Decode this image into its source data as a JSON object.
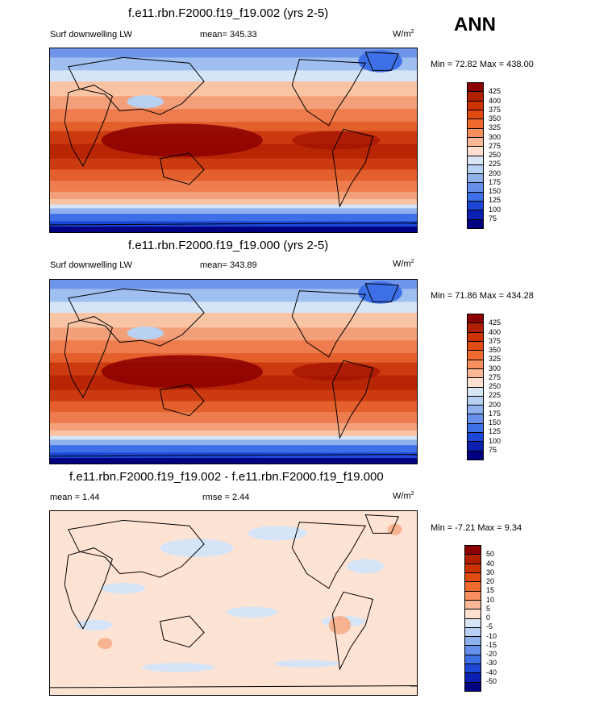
{
  "season": "ANN",
  "panels": [
    {
      "title": "f.e11.rbn.F2000.f19_f19.002 (yrs 2-5)",
      "left_label": "Surf downwelling LW",
      "center_label": "mean= 345.33",
      "units": "W/m",
      "units_exp": "2",
      "minmax": "Min =  72.82 Max = 438.00",
      "colorbar": {
        "labels": [
          "425",
          "400",
          "375",
          "350",
          "325",
          "300",
          "275",
          "250",
          "225",
          "200",
          "175",
          "150",
          "125",
          "100",
          "75"
        ],
        "colors": [
          "#8b0000",
          "#b01f00",
          "#cc3300",
          "#e04b10",
          "#ee6a2e",
          "#f78f5e",
          "#fbb896",
          "#fde0cf",
          "#d9e6f7",
          "#b8d0f2",
          "#8fb1ee",
          "#6690eb",
          "#3d6fe6",
          "#1c47d6",
          "#0b1fb0",
          "#000080"
        ]
      },
      "field": "lw"
    },
    {
      "title": "f.e11.rbn.F2000.f19_f19.000 (yrs 2-5)",
      "left_label": "Surf downwelling LW",
      "center_label": "mean= 343.89",
      "units": "W/m",
      "units_exp": "2",
      "minmax": "Min =  71.86 Max = 434.28",
      "colorbar": {
        "labels": [
          "425",
          "400",
          "375",
          "350",
          "325",
          "300",
          "275",
          "250",
          "225",
          "200",
          "175",
          "150",
          "125",
          "100",
          "75"
        ],
        "colors": [
          "#8b0000",
          "#b01f00",
          "#cc3300",
          "#e04b10",
          "#ee6a2e",
          "#f78f5e",
          "#fbb896",
          "#fde0cf",
          "#d9e6f7",
          "#b8d0f2",
          "#8fb1ee",
          "#6690eb",
          "#3d6fe6",
          "#1c47d6",
          "#0b1fb0",
          "#000080"
        ]
      },
      "field": "lw"
    },
    {
      "title": "f.e11.rbn.F2000.f19_f19.002 - f.e11.rbn.F2000.f19_f19.000",
      "left_label": "mean =   1.44",
      "center_label": "rmse =   2.44",
      "units": "W/m",
      "units_exp": "2",
      "minmax": "Min =  -7.21 Max =   9.34",
      "colorbar": {
        "labels": [
          "50",
          "40",
          "30",
          "20",
          "15",
          "10",
          "5",
          "0",
          "-5",
          "-10",
          "-15",
          "-20",
          "-30",
          "-40",
          "-50"
        ],
        "colors": [
          "#8b0000",
          "#b01f00",
          "#cc3300",
          "#e04b10",
          "#ee6a2e",
          "#f78f5e",
          "#fbb896",
          "#fde0cf",
          "#d9e6f7",
          "#b8d0f2",
          "#8fb1ee",
          "#6690eb",
          "#3d6fe6",
          "#1c47d6",
          "#0b1fb0",
          "#000080"
        ]
      },
      "field": "diff"
    }
  ]
}
